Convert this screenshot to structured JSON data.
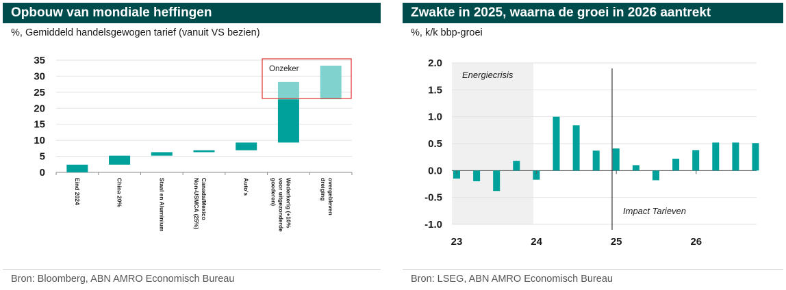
{
  "colors": {
    "header_bg": "#004c4c",
    "bar": "#00a19a",
    "bar_light": "#7fd2cd",
    "shade": "#f0f0f0",
    "uncertain_box": "#e03030"
  },
  "left": {
    "title": "Opbouw van mondiale heffingen",
    "subtitle": "%, Gemiddeld handelsgewogen tarief (vanuit VS bezien)",
    "source": "Bron: Bloomberg, ABN AMRO Economisch Bureau",
    "annotation": "Onzeker"
  },
  "right": {
    "title": "Zwakte in 2025, waarna de groei in 2026 aantrekt",
    "subtitle": "%, k/k bbp-groei",
    "source": "Bron: LSEG, ABN AMRO Economisch Bureau",
    "annotation_shaded": "Energiecrisis",
    "annotation_line": "Impact Tarieven"
  },
  "chart_data": [
    {
      "type": "bar",
      "subtype": "waterfall",
      "title": "Opbouw van mondiale heffingen",
      "ylabel": "%, Gemiddeld handelsgewogen tarief (vanuit VS bezien)",
      "ylim": [
        0,
        35
      ],
      "yticks": [
        "0",
        "5",
        "10",
        "15",
        "20",
        "25",
        "30",
        "35"
      ],
      "grid": true,
      "categories": [
        "Eind 2024",
        "China 20%",
        "Staal en Aluminium",
        "Canada/Mexico Non-USMCA (25%)",
        "Auto's",
        "Wederkerig (+10% voor uitgezonderde goederen)",
        "overgebleven dreiging"
      ],
      "bars": [
        {
          "bottom": 0,
          "top": 2.4,
          "style": "solid"
        },
        {
          "bottom": 2.4,
          "top": 5.2,
          "style": "solid"
        },
        {
          "bottom": 5.2,
          "top": 6.3,
          "style": "solid"
        },
        {
          "bottom": 6.3,
          "top": 6.9,
          "style": "solid"
        },
        {
          "bottom": 6.9,
          "top": 9.3,
          "style": "solid"
        },
        {
          "bottom": 9.3,
          "top": 22.8,
          "style": "solid"
        },
        {
          "bottom": 22.8,
          "top": 28.2,
          "style": "light"
        },
        {
          "bottom": 22.8,
          "top": 33.3,
          "style": "light"
        }
      ],
      "bar_category_index": [
        0,
        1,
        2,
        3,
        4,
        5,
        5,
        6
      ],
      "annotations": [
        "Onzeker"
      ]
    },
    {
      "type": "bar",
      "title": "Zwakte in 2025, waarna de groei in 2026 aantrekt",
      "ylabel": "%, k/k bbp-groei",
      "ylim": [
        -1.0,
        2.0
      ],
      "yticks": [
        "2.0",
        "1.5",
        "1.0",
        "0.5",
        "0.0",
        "-0.5",
        "-1.0"
      ],
      "xticks": [
        "23",
        "24",
        "25",
        "26"
      ],
      "grid": true,
      "x": [
        "23Q1",
        "23Q2",
        "23Q3",
        "23Q4",
        "24Q1",
        "24Q2",
        "24Q3",
        "24Q4",
        "25Q1",
        "25Q2",
        "25Q3",
        "25Q4",
        "26Q1",
        "26Q2",
        "26Q3",
        "26Q4"
      ],
      "values": [
        -0.15,
        -0.2,
        -0.38,
        0.18,
        -0.17,
        1.0,
        0.84,
        0.37,
        0.41,
        0.1,
        -0.18,
        0.22,
        0.38,
        0.52,
        0.52,
        0.51
      ],
      "shaded_region": {
        "label": "Energiecrisis",
        "from": "23Q1",
        "to": "23Q4"
      },
      "vertical_line": {
        "label": "Impact Tarieven",
        "at": "25Q1"
      }
    }
  ]
}
